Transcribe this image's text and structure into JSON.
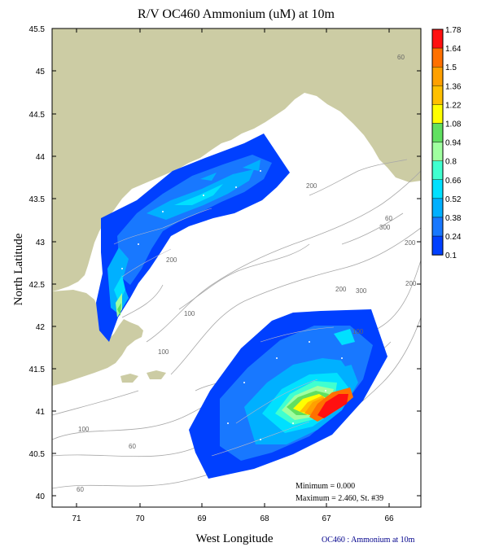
{
  "title": "R/V OC460 Ammonium (uM) at 10m",
  "x_axis_label": "West Longitude",
  "y_axis_label": "North Latitude",
  "x_ticks": [
    "71",
    "70",
    "69",
    "68",
    "67",
    "66"
  ],
  "y_ticks": [
    "45.5",
    "45",
    "44.5",
    "44",
    "43.5",
    "43",
    "42.5",
    "42",
    "41.5",
    "41",
    "40.5",
    "40"
  ],
  "colorbar_labels": [
    "1.78",
    "1.64",
    "1.5",
    "1.36",
    "1.22",
    "1.08",
    "0.94",
    "0.8",
    "0.66",
    "0.52",
    "0.38",
    "0.24",
    "0.1"
  ],
  "colorbar_colors": [
    "#ff1010",
    "#ff7000",
    "#ffa000",
    "#ffc000",
    "#ffff00",
    "#60e060",
    "#a0ffa0",
    "#40ffd0",
    "#00e0ff",
    "#00b0ff",
    "#1878ff",
    "#0040ff"
  ],
  "annotation_min": "Minimum = 0.000",
  "annotation_max": "Maximum = 2.460, St. #39",
  "credit": "OC460 : Ammonium at 10m",
  "depth_labels": [
    "60",
    "200",
    "100",
    "60",
    "200",
    "300",
    "100",
    "200",
    "100",
    "60",
    "200",
    "200",
    "300",
    "100",
    "60"
  ],
  "colors": {
    "land": "#cccca4",
    "ocean": "#ffffff",
    "contour": "#a8a8a8",
    "credit_text": "#00008b"
  }
}
